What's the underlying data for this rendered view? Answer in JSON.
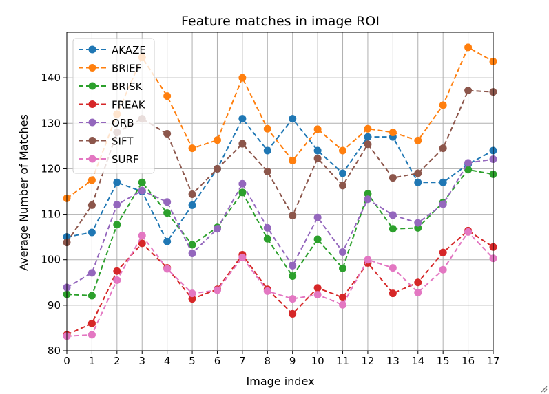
{
  "chart_data": {
    "type": "line",
    "title": "Feature matches in image ROI",
    "xlabel": "Image index",
    "ylabel": "Average Number of Matches",
    "xlim": [
      0,
      17
    ],
    "ylim": [
      80,
      150
    ],
    "x_ticks": [
      "0",
      "1",
      "2",
      "3",
      "4",
      "5",
      "6",
      "7",
      "8",
      "9",
      "10",
      "11",
      "12",
      "13",
      "14",
      "15",
      "16",
      "17"
    ],
    "y_ticks": [
      "80",
      "90",
      "100",
      "110",
      "120",
      "130",
      "140"
    ],
    "grid": true,
    "legend_position": "top-left",
    "x": [
      0,
      1,
      2,
      3,
      4,
      5,
      6,
      7,
      8,
      9,
      10,
      11,
      12,
      13,
      14,
      15,
      16,
      17
    ],
    "series": [
      {
        "name": "AKAZE",
        "color": "#1f77b4",
        "values": [
          105,
          106,
          117,
          115,
          104,
          112,
          120,
          131,
          124,
          131,
          124,
          119,
          127,
          127,
          117,
          117,
          121,
          124
        ]
      },
      {
        "name": "BRIEF",
        "color": "#ff7f0e",
        "values": [
          113.5,
          117.5,
          132,
          144.5,
          136,
          124.5,
          126.3,
          140,
          128.8,
          121.8,
          128.7,
          124,
          128.8,
          128,
          126.2,
          134,
          146.7,
          143.6
        ]
      },
      {
        "name": "BRISK",
        "color": "#2ca02c",
        "values": [
          92.4,
          92.1,
          107.7,
          117,
          110.3,
          103.3,
          107.1,
          114.8,
          104.6,
          96.4,
          104.5,
          98.1,
          114.5,
          106.8,
          107,
          112.6,
          119.8,
          118.8
        ]
      },
      {
        "name": "FREAK",
        "color": "#d62728",
        "values": [
          83.5,
          86,
          97.5,
          103.6,
          98.2,
          91.4,
          93.5,
          101.1,
          93.5,
          88.1,
          93.8,
          91.7,
          99.3,
          92.6,
          95,
          101.6,
          106.4,
          102.8
        ]
      },
      {
        "name": "ORB",
        "color": "#9467bd",
        "values": [
          93.9,
          97.1,
          112.1,
          115.2,
          112.7,
          101.4,
          106.8,
          116.7,
          107,
          98.7,
          109.3,
          101.7,
          113.3,
          109.8,
          108.1,
          112.2,
          121.3,
          122.1
        ]
      },
      {
        "name": "SIFT",
        "color": "#8c564b",
        "values": [
          103.8,
          112,
          128,
          131,
          127.7,
          114.4,
          120,
          125.5,
          119.4,
          109.7,
          122.3,
          116.3,
          125.4,
          118,
          119,
          124.5,
          137.2,
          136.9
        ]
      },
      {
        "name": "SURF",
        "color": "#e377c2",
        "values": [
          83.2,
          83.5,
          95.5,
          105.3,
          98,
          92.6,
          93.3,
          100.5,
          93.1,
          91.4,
          92.3,
          90.1,
          100,
          98.2,
          92.8,
          97.8,
          106.1,
          100.3
        ]
      }
    ]
  }
}
